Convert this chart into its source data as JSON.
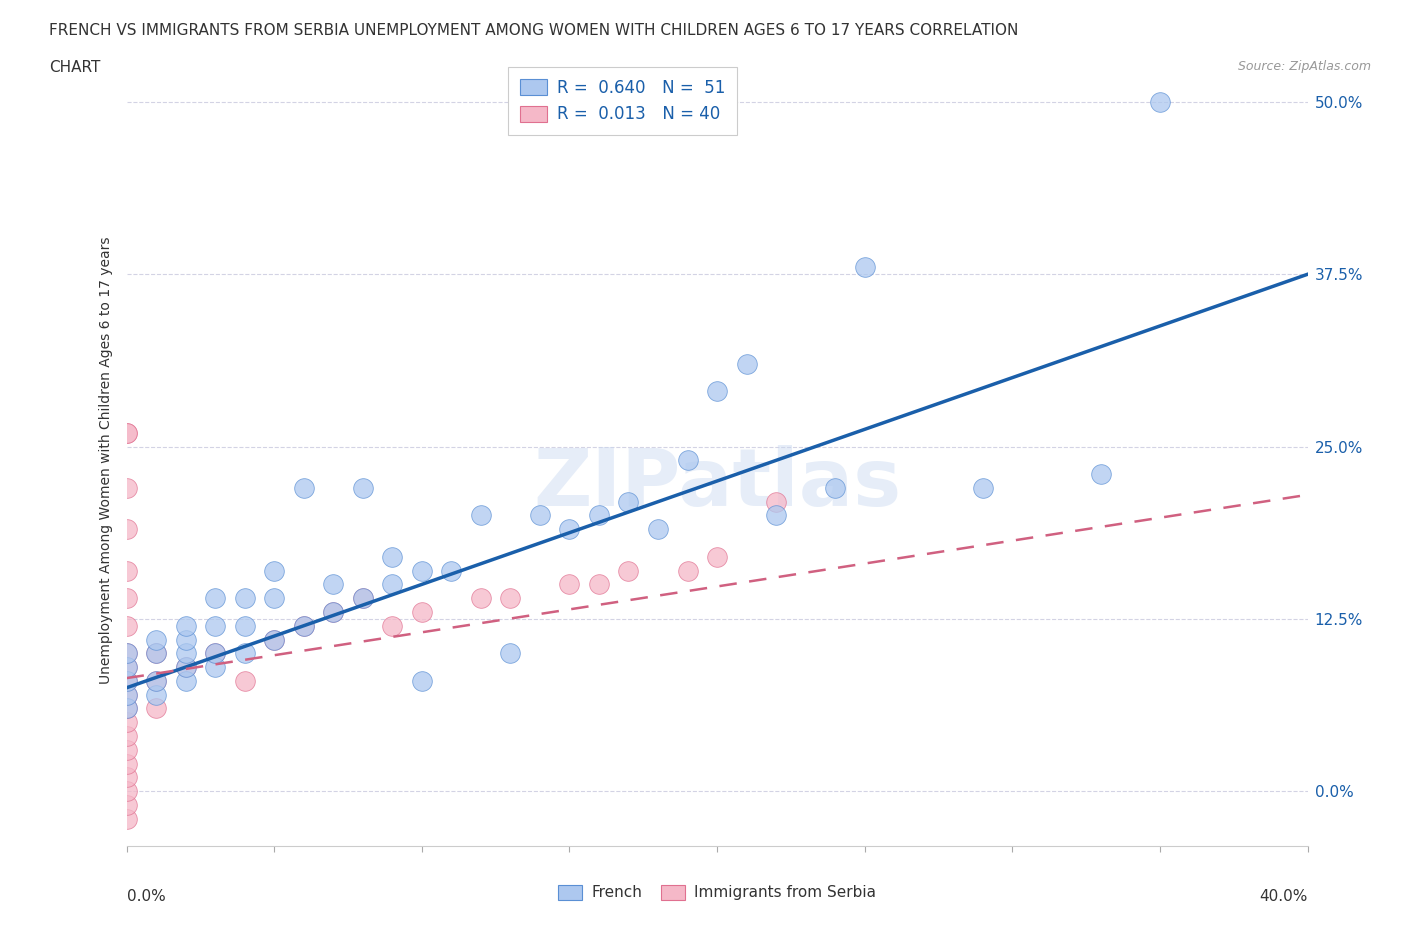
{
  "title_line1": "FRENCH VS IMMIGRANTS FROM SERBIA UNEMPLOYMENT AMONG WOMEN WITH CHILDREN AGES 6 TO 17 YEARS CORRELATION",
  "title_line2": "CHART",
  "source_text": "Source: ZipAtlas.com",
  "ylabel": "Unemployment Among Women with Children Ages 6 to 17 years",
  "xlabel_french": "French",
  "xlabel_serbia": "Immigrants from Serbia",
  "xlim": [
    0.0,
    0.4
  ],
  "ylim": [
    -0.04,
    0.52
  ],
  "ytick_labels_right": [
    "0.0%",
    "12.5%",
    "25.0%",
    "37.5%",
    "50.0%"
  ],
  "ytick_values_right": [
    0.0,
    0.125,
    0.25,
    0.375,
    0.5
  ],
  "xtick_values": [
    0.0,
    0.05,
    0.1,
    0.15,
    0.2,
    0.25,
    0.3,
    0.35,
    0.4
  ],
  "french_R": 0.64,
  "french_N": 51,
  "serbia_R": 0.013,
  "serbia_N": 40,
  "french_color": "#adc8ef",
  "french_edge_color": "#5a8fd4",
  "french_line_color": "#1a5faa",
  "serbia_color": "#f5b8c8",
  "serbia_edge_color": "#e07090",
  "serbia_line_color": "#d06080",
  "watermark": "ZIPatlas",
  "background_color": "#ffffff",
  "grid_color": "#c8c8de",
  "french_x": [
    0.0,
    0.0,
    0.0,
    0.0,
    0.0,
    0.01,
    0.01,
    0.01,
    0.01,
    0.02,
    0.02,
    0.02,
    0.02,
    0.02,
    0.03,
    0.03,
    0.03,
    0.03,
    0.04,
    0.04,
    0.04,
    0.05,
    0.05,
    0.05,
    0.06,
    0.06,
    0.07,
    0.07,
    0.08,
    0.08,
    0.09,
    0.09,
    0.1,
    0.1,
    0.11,
    0.12,
    0.13,
    0.14,
    0.15,
    0.16,
    0.17,
    0.18,
    0.19,
    0.2,
    0.21,
    0.22,
    0.24,
    0.25,
    0.29,
    0.33,
    0.35
  ],
  "french_y": [
    0.06,
    0.07,
    0.08,
    0.09,
    0.1,
    0.07,
    0.08,
    0.1,
    0.11,
    0.08,
    0.09,
    0.1,
    0.11,
    0.12,
    0.09,
    0.1,
    0.12,
    0.14,
    0.1,
    0.12,
    0.14,
    0.11,
    0.14,
    0.16,
    0.12,
    0.22,
    0.13,
    0.15,
    0.14,
    0.22,
    0.15,
    0.17,
    0.08,
    0.16,
    0.16,
    0.2,
    0.1,
    0.2,
    0.19,
    0.2,
    0.21,
    0.19,
    0.24,
    0.29,
    0.31,
    0.2,
    0.22,
    0.38,
    0.22,
    0.23,
    0.5
  ],
  "serbia_x": [
    0.0,
    0.0,
    0.0,
    0.0,
    0.0,
    0.0,
    0.0,
    0.0,
    0.0,
    0.0,
    0.0,
    0.0,
    0.0,
    0.0,
    0.0,
    0.0,
    0.0,
    0.0,
    0.0,
    0.0,
    0.01,
    0.01,
    0.01,
    0.02,
    0.03,
    0.04,
    0.05,
    0.06,
    0.07,
    0.08,
    0.09,
    0.1,
    0.12,
    0.13,
    0.15,
    0.16,
    0.17,
    0.19,
    0.2,
    0.22
  ],
  "serbia_y": [
    -0.02,
    -0.01,
    0.0,
    0.01,
    0.02,
    0.03,
    0.04,
    0.05,
    0.06,
    0.07,
    0.08,
    0.09,
    0.1,
    0.12,
    0.14,
    0.16,
    0.19,
    0.22,
    0.26,
    0.26,
    0.06,
    0.08,
    0.1,
    0.09,
    0.1,
    0.08,
    0.11,
    0.12,
    0.13,
    0.14,
    0.12,
    0.13,
    0.14,
    0.14,
    0.15,
    0.15,
    0.16,
    0.16,
    0.17,
    0.21
  ],
  "french_line_x0": 0.0,
  "french_line_y0": 0.075,
  "french_line_x1": 0.4,
  "french_line_y1": 0.375,
  "serbia_line_x0": 0.0,
  "serbia_line_y0": 0.082,
  "serbia_line_x1": 0.4,
  "serbia_line_y1": 0.215
}
